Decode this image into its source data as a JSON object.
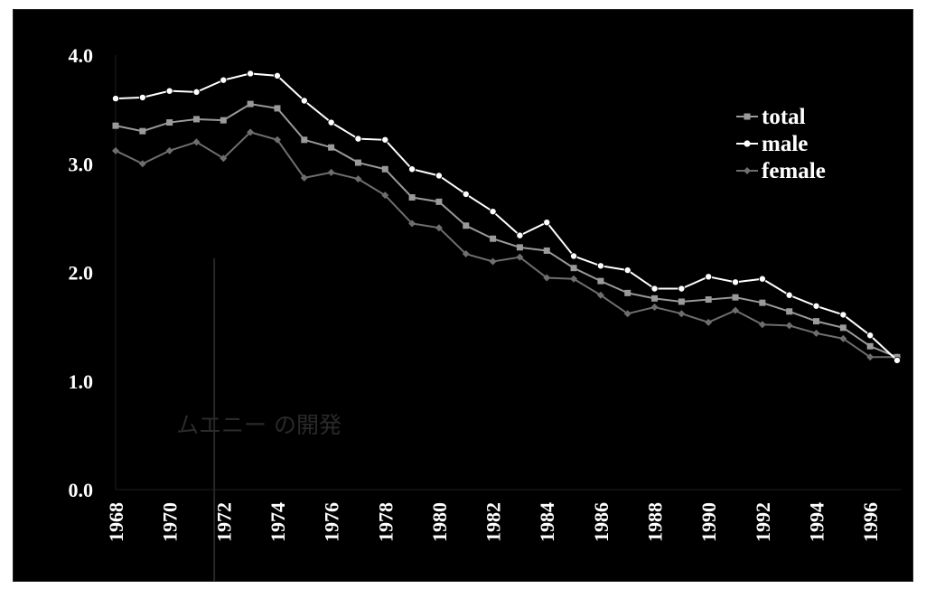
{
  "chart_data": {
    "type": "line",
    "title": "",
    "xlabel": "",
    "ylabel": "",
    "ylim": [
      0,
      4
    ],
    "xlim": [
      1968,
      1997
    ],
    "y_ticks": [
      "0.0",
      "1.0",
      "2.0",
      "3.0",
      "4.0"
    ],
    "x_ticks": [
      "1968",
      "1970",
      "1972",
      "1974",
      "1976",
      "1978",
      "1980",
      "1982",
      "1984",
      "1986",
      "1988",
      "1990",
      "1992",
      "1994",
      "1996"
    ],
    "grid": false,
    "legend_position": "top-right",
    "annotation": {
      "text": "ムエニー の開発",
      "x": 1973
    },
    "x": [
      1968,
      1969,
      1970,
      1971,
      1972,
      1973,
      1974,
      1975,
      1976,
      1977,
      1978,
      1979,
      1980,
      1981,
      1982,
      1983,
      1984,
      1985,
      1986,
      1987,
      1988,
      1989,
      1990,
      1991,
      1992,
      1993,
      1994,
      1995,
      1996,
      1997
    ],
    "series": [
      {
        "name": "total",
        "color": "#9a9a9a",
        "marker": "square",
        "values": [
          3.35,
          3.3,
          3.38,
          3.41,
          3.4,
          3.55,
          3.51,
          3.22,
          3.15,
          3.01,
          2.95,
          2.69,
          2.65,
          2.43,
          2.31,
          2.23,
          2.2,
          2.04,
          1.92,
          1.81,
          1.76,
          1.73,
          1.75,
          1.77,
          1.72,
          1.64,
          1.55,
          1.49,
          1.32,
          1.22
        ]
      },
      {
        "name": "male",
        "color": "#ffffff",
        "marker": "circle",
        "values": [
          3.6,
          3.61,
          3.67,
          3.66,
          3.77,
          3.83,
          3.81,
          3.58,
          3.38,
          3.23,
          3.22,
          2.95,
          2.89,
          2.72,
          2.56,
          2.34,
          2.46,
          2.15,
          2.06,
          2.02,
          1.85,
          1.85,
          1.96,
          1.91,
          1.94,
          1.79,
          1.69,
          1.61,
          1.42,
          1.19
        ]
      },
      {
        "name": "female",
        "color": "#6e6e6e",
        "marker": "diamond",
        "values": [
          3.12,
          3.0,
          3.12,
          3.2,
          3.05,
          3.29,
          3.22,
          2.87,
          2.92,
          2.86,
          2.71,
          2.45,
          2.41,
          2.17,
          2.1,
          2.14,
          1.95,
          1.94,
          1.79,
          1.62,
          1.68,
          1.62,
          1.54,
          1.65,
          1.52,
          1.51,
          1.44,
          1.39,
          1.22,
          1.22
        ]
      }
    ]
  }
}
